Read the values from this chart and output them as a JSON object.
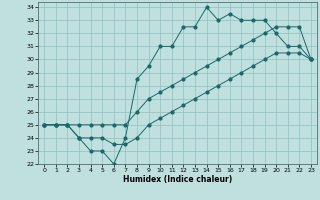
{
  "xlabel": "Humidex (Indice chaleur)",
  "bg_color": "#c0e0e0",
  "line_color": "#1a6868",
  "grid_color": "#90c0c0",
  "x": [
    0,
    1,
    2,
    3,
    4,
    5,
    6,
    7,
    8,
    9,
    10,
    11,
    12,
    13,
    14,
    15,
    16,
    17,
    18,
    19,
    20,
    21,
    22,
    23
  ],
  "y_jagged": [
    25,
    25,
    25,
    24,
    23,
    23,
    22,
    24,
    28.5,
    29.5,
    31,
    31,
    32.5,
    32.5,
    34,
    33,
    33.5,
    33,
    33,
    33,
    32,
    31,
    31,
    30
  ],
  "y_upper": [
    25,
    25,
    25,
    25,
    25,
    25,
    25,
    25,
    26,
    27,
    27.5,
    28,
    28.5,
    29,
    29.5,
    30,
    30.5,
    31,
    31.5,
    32,
    32.5,
    32.5,
    32.5,
    30
  ],
  "y_lower": [
    25,
    25,
    25,
    24,
    24,
    24,
    23.5,
    23.5,
    24,
    25,
    25.5,
    26,
    26.5,
    27,
    27.5,
    28,
    28.5,
    29,
    29.5,
    30,
    30.5,
    30.5,
    30.5,
    30
  ],
  "ylim": [
    22,
    34.4
  ],
  "xlim": [
    -0.5,
    23.5
  ],
  "yticks": [
    22,
    23,
    24,
    25,
    26,
    27,
    28,
    29,
    30,
    31,
    32,
    33,
    34
  ],
  "xticks": [
    0,
    1,
    2,
    3,
    4,
    5,
    6,
    7,
    8,
    9,
    10,
    11,
    12,
    13,
    14,
    15,
    16,
    17,
    18,
    19,
    20,
    21,
    22,
    23
  ]
}
